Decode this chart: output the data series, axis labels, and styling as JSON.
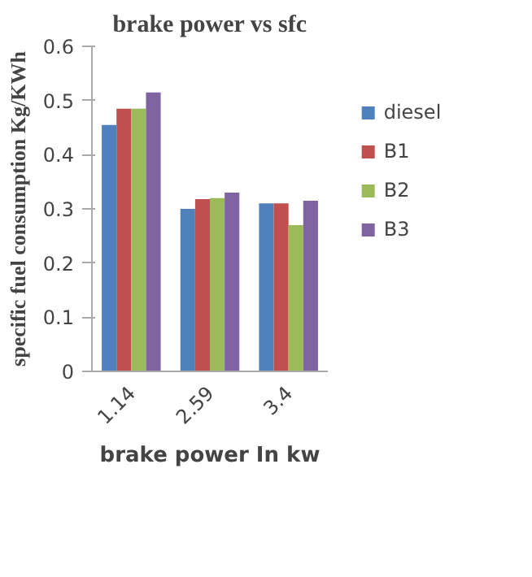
{
  "chart_data": {
    "type": "bar",
    "title": "brake power vs sfc",
    "xlabel": "brake power In kw",
    "ylabel": "specific fuel consumption Kg/KWh",
    "categories": [
      "1.14",
      "2.59",
      "3.4"
    ],
    "series": [
      {
        "name": "diesel",
        "color": "#4f81bd",
        "values": [
          0.455,
          0.3,
          0.31
        ]
      },
      {
        "name": "B1",
        "color": "#c0504d",
        "values": [
          0.485,
          0.318,
          0.31
        ]
      },
      {
        "name": "B2",
        "color": "#9bbb59",
        "values": [
          0.485,
          0.32,
          0.27
        ]
      },
      {
        "name": "B3",
        "color": "#8064a2",
        "values": [
          0.515,
          0.33,
          0.315
        ]
      }
    ],
    "ylim": [
      0,
      0.6
    ],
    "yticks": [
      0,
      0.1,
      0.2,
      0.3,
      0.4,
      0.5,
      0.6
    ],
    "grid": false,
    "legend": "right"
  }
}
